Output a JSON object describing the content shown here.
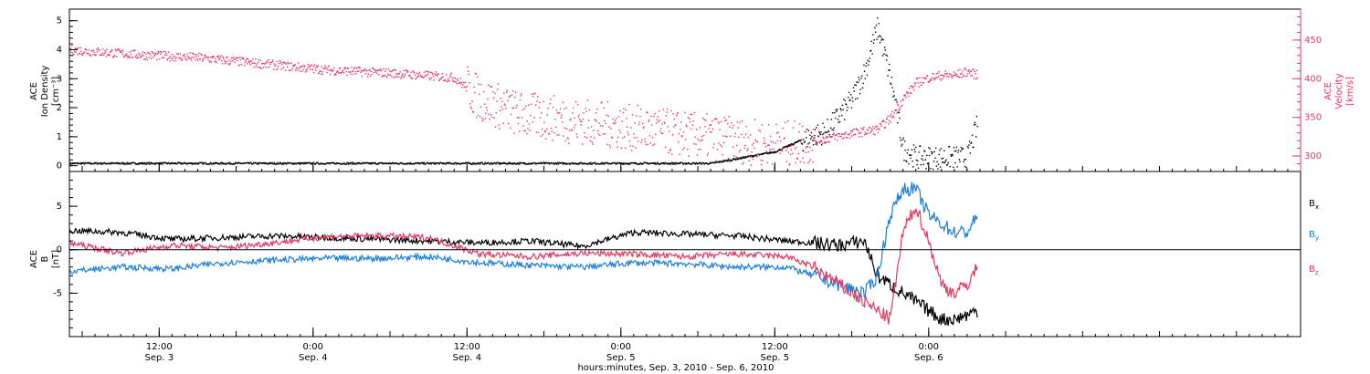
{
  "footer": {
    "xlabel": "hours:minutes, Sep.  3, 2010 - Sep.  6, 2010"
  },
  "colors": {
    "black": "#000000",
    "red": "#e8365e",
    "blue": "#1a7fe0"
  },
  "chart_data": [
    {
      "type": "scatter",
      "panel": "top",
      "ylabel_left": [
        "ACE",
        "Ion Density",
        "[cm⁻³]"
      ],
      "ylabel_right": [
        "ACE",
        "Velocity",
        "[km/s]"
      ],
      "ylim_left": [
        -0.2,
        5.4
      ],
      "ylim_right": [
        280,
        490
      ],
      "yticks_left": [
        "0",
        "1",
        "2",
        "3",
        "4",
        "5"
      ],
      "yticks_right": [
        "300",
        "350",
        "400",
        "450"
      ],
      "xlim_hours": [
        0,
        96
      ],
      "x_ticks": [
        {
          "time": "12:00",
          "date": "Sep. 3",
          "hour": 7
        },
        {
          "time": "0:00",
          "date": "Sep. 4",
          "hour": 19
        },
        {
          "time": "12:00",
          "date": "Sep. 4",
          "hour": 31
        },
        {
          "time": "0:00",
          "date": "Sep. 5",
          "hour": 43
        },
        {
          "time": "12:00",
          "date": "Sep. 5",
          "hour": 55
        },
        {
          "time": "0:00",
          "date": "Sep. 6",
          "hour": 67
        }
      ],
      "series": [
        {
          "axis": "left",
          "color": "#000000",
          "hours": [
            0,
            5,
            10,
            15,
            20,
            25,
            30,
            35,
            40,
            45,
            50,
            55,
            57,
            59,
            61,
            62,
            63,
            64,
            65,
            66,
            67,
            68,
            69,
            70,
            70.8
          ],
          "values": [
            0.1,
            0.1,
            0.1,
            0.1,
            0.1,
            0.1,
            0.1,
            0.1,
            0.1,
            0.1,
            0.1,
            0.5,
            0.9,
            1.2,
            2.3,
            3.3,
            4.8,
            3.0,
            0.6,
            0.3,
            0.3,
            0.3,
            0.3,
            0.3,
            1.5
          ]
        },
        {
          "axis": "right",
          "color": "#e8365e",
          "hours": [
            0,
            5,
            10,
            15,
            20,
            25,
            30,
            32,
            35,
            40,
            45,
            50,
            55,
            58,
            61,
            63,
            64,
            65,
            66,
            67,
            68,
            69,
            70,
            70.8
          ],
          "values": [
            438,
            432,
            428,
            420,
            412,
            408,
            402,
            375,
            355,
            345,
            335,
            325,
            315,
            320,
            330,
            335,
            350,
            375,
            395,
            402,
            405,
            405,
            410,
            405
          ]
        }
      ]
    },
    {
      "type": "line",
      "panel": "bottom",
      "ylabel": [
        "ACE",
        "B",
        "[nT]"
      ],
      "ylim": [
        -10,
        9
      ],
      "yticks": [
        "-5",
        "0",
        "5"
      ],
      "xlim_hours": [
        0,
        96
      ],
      "legend_position": "right",
      "series": [
        {
          "name": "Bx",
          "color": "#000000",
          "hours": [
            0,
            4,
            8,
            12,
            16,
            20,
            24,
            28,
            32,
            36,
            40,
            44,
            48,
            52,
            56,
            58,
            60,
            62,
            63,
            64,
            65,
            66,
            67,
            68,
            69,
            70,
            70.8
          ],
          "values": [
            2.2,
            2.0,
            1.2,
            1.4,
            1.6,
            1.4,
            1.2,
            1.0,
            0.8,
            1.0,
            0.4,
            2.0,
            1.8,
            1.6,
            1.0,
            0.8,
            0.5,
            1.0,
            -3,
            -4,
            -5,
            -6,
            -7,
            -8,
            -8,
            -7.5,
            -7
          ]
        },
        {
          "name": "By",
          "color": "#1a7fe0",
          "hours": [
            0,
            4,
            8,
            12,
            16,
            20,
            24,
            28,
            32,
            36,
            40,
            44,
            48,
            52,
            56,
            58,
            60,
            62,
            63,
            64,
            65,
            66,
            67,
            68,
            69,
            70,
            70.8
          ],
          "values": [
            -2.5,
            -2.0,
            -2.2,
            -1.5,
            -1.2,
            -1.0,
            -1.0,
            -0.8,
            -1.5,
            -1.8,
            -2.0,
            -1.5,
            -1.6,
            -2.0,
            -2.0,
            -3,
            -4,
            -5,
            -3,
            4,
            7,
            7,
            4,
            3,
            2,
            2,
            4
          ]
        },
        {
          "name": "Bz",
          "color": "#e8365e",
          "hours": [
            0,
            4,
            8,
            12,
            16,
            20,
            24,
            28,
            32,
            36,
            40,
            44,
            48,
            52,
            56,
            58,
            60,
            62,
            63,
            64,
            65,
            66,
            67,
            68,
            69,
            70,
            70.8
          ],
          "values": [
            0.8,
            -0.4,
            0.5,
            0.2,
            0.8,
            1.5,
            1.6,
            1.4,
            -0.5,
            -0.8,
            -0.4,
            -0.5,
            -0.8,
            -0.5,
            -0.8,
            -2,
            -4,
            -6,
            -7,
            -8,
            2,
            5,
            1,
            -4,
            -5,
            -4,
            -2
          ]
        }
      ]
    }
  ]
}
